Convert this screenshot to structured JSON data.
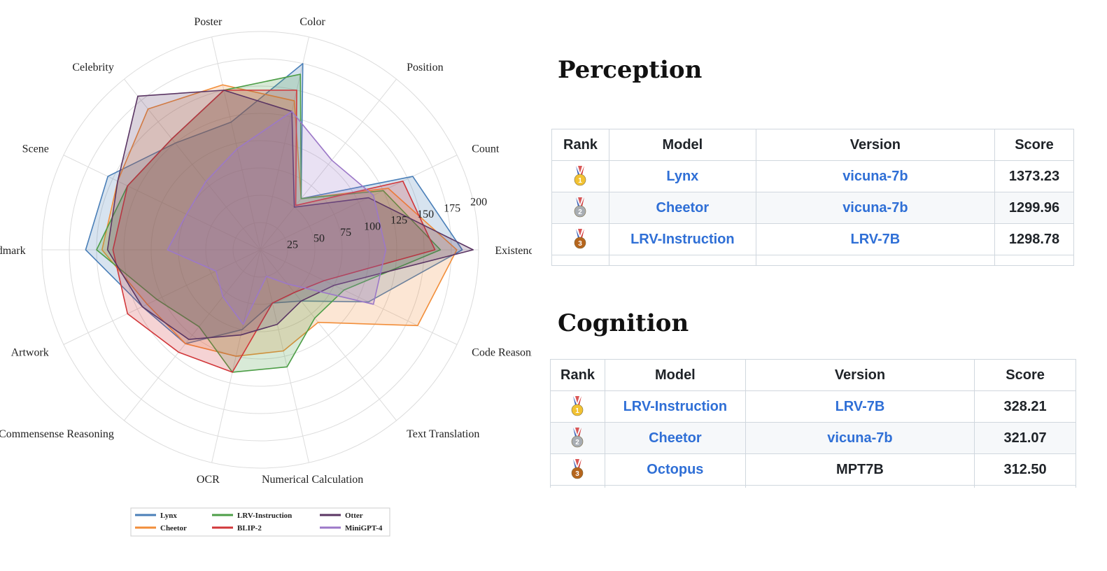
{
  "chart_data": {
    "type": "radar",
    "axes": [
      "Existence",
      "Count",
      "Position",
      "Color",
      "Poster",
      "Celebrity",
      "Scene",
      "Landmark",
      "Artwork",
      "Commensense Reasoning",
      "OCR",
      "Numerical Calculation",
      "Text Translation",
      "Code Reasoning"
    ],
    "radial_ticks": [
      "25",
      "50",
      "75",
      "100",
      "125",
      "150",
      "175",
      "200"
    ],
    "rmax": 200,
    "grid": true,
    "legend_position": "bottom-center",
    "series": [
      {
        "name": "Lynx",
        "color": "#4a7fb8",
        "values": [
          185,
          155,
          60,
          175,
          120,
          125,
          155,
          160,
          120,
          110,
          75,
          50,
          60,
          110
        ]
      },
      {
        "name": "Cheetor",
        "color": "#f28e3a",
        "values": [
          180,
          130,
          60,
          140,
          155,
          165,
          145,
          145,
          115,
          110,
          100,
          95,
          85,
          160
        ]
      },
      {
        "name": "LRV-Instruction",
        "color": "#4d9e47",
        "values": [
          165,
          125,
          60,
          165,
          150,
          130,
          135,
          150,
          105,
          90,
          115,
          110,
          80,
          85
        ]
      },
      {
        "name": "BLIP-2",
        "color": "#d1373a",
        "values": [
          160,
          145,
          52,
          150,
          150,
          130,
          135,
          135,
          135,
          120,
          115,
          50,
          50,
          65
        ]
      },
      {
        "name": "Otter",
        "color": "#5a3563",
        "values": [
          195,
          110,
          50,
          130,
          150,
          180,
          145,
          140,
          120,
          105,
          80,
          70,
          60,
          75
        ]
      },
      {
        "name": "MiniGPT-4",
        "color": "#9c78c8",
        "values": [
          115,
          115,
          105,
          130,
          95,
          80,
          75,
          85,
          45,
          55,
          70,
          25,
          40,
          115
        ]
      }
    ]
  },
  "perception": {
    "title": "Perception",
    "headers": [
      "Rank",
      "Model",
      "Version",
      "Score"
    ],
    "rows": [
      {
        "rank": "gold",
        "model": "Lynx",
        "version": "vicuna-7b",
        "score": "1373.23"
      },
      {
        "rank": "silver",
        "model": "Cheetor",
        "version": "vicuna-7b",
        "score": "1299.96"
      },
      {
        "rank": "bronze",
        "model": "LRV-Instruction",
        "version": "LRV-7B",
        "score": "1298.78"
      }
    ]
  },
  "cognition": {
    "title": "Cognition",
    "headers": [
      "Rank",
      "Model",
      "Version",
      "Score"
    ],
    "rows": [
      {
        "rank": "gold",
        "model": "LRV-Instruction",
        "version": "LRV-7B",
        "score": "328.21"
      },
      {
        "rank": "silver",
        "model": "Cheetor",
        "version": "vicuna-7b",
        "score": "321.07"
      },
      {
        "rank": "bronze",
        "model": "Octopus",
        "version": "MPT7B",
        "score": "312.50"
      }
    ]
  },
  "medal_colors": {
    "gold": "#f2c232",
    "silver": "#a8adb3",
    "bronze": "#b5651d",
    "ribbon_red": "#d33a3a",
    "ribbon_blue": "#3a5fb8"
  }
}
